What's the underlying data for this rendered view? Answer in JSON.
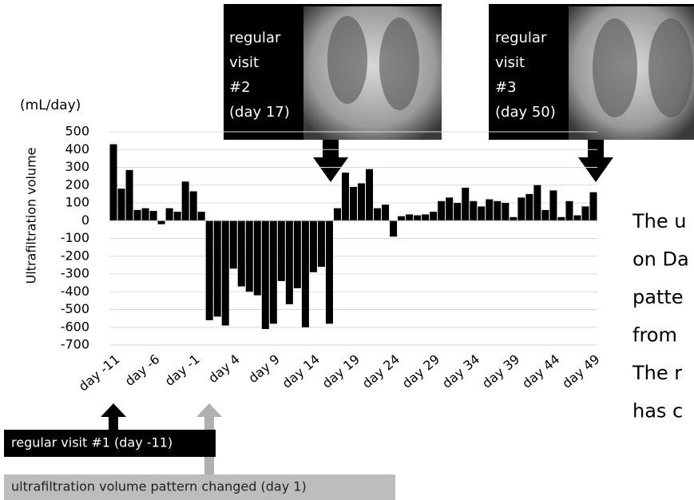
{
  "chart_data": {
    "type": "bar",
    "unit_label": "(mL/day)",
    "y_axis_label": "Ultrafiltration volume",
    "categories": [
      "day -11",
      null,
      null,
      null,
      null,
      "day -6",
      null,
      null,
      null,
      null,
      "day -1",
      null,
      null,
      null,
      null,
      "day 4",
      null,
      null,
      null,
      null,
      "day 9",
      null,
      null,
      null,
      null,
      "day 14",
      null,
      null,
      null,
      null,
      "day 19",
      null,
      null,
      null,
      null,
      "day 24",
      null,
      null,
      null,
      null,
      "day 29",
      null,
      null,
      null,
      null,
      "day 34",
      null,
      null,
      null,
      null,
      "day 39",
      null,
      null,
      null,
      null,
      "day 44",
      null,
      null,
      null,
      null,
      "day 49"
    ],
    "values": [
      430,
      180,
      285,
      60,
      70,
      55,
      -20,
      70,
      50,
      220,
      165,
      50,
      -560,
      -540,
      -590,
      -270,
      -370,
      -400,
      -420,
      -610,
      -580,
      -340,
      -470,
      -380,
      -600,
      -290,
      -260,
      -580,
      70,
      270,
      190,
      210,
      290,
      70,
      90,
      -90,
      25,
      35,
      30,
      35,
      50,
      110,
      130,
      100,
      185,
      110,
      80,
      120,
      110,
      100,
      20,
      130,
      150,
      200,
      60,
      170,
      20,
      110,
      30,
      80,
      160
    ],
    "color": "#000000",
    "ylim": [
      -700,
      500
    ],
    "yticks": [
      -700,
      -600,
      -500,
      -400,
      -300,
      -200,
      -100,
      0,
      100,
      200,
      300,
      400,
      500
    ],
    "grid": true,
    "annotations": [
      {
        "lines": [
          "regular",
          "visit",
          "#2",
          "(day 17)"
        ]
      },
      {
        "lines": [
          "regular",
          "visit",
          "#3",
          "(day 50)"
        ]
      },
      {
        "text": "regular visit #1 (day -11)"
      },
      {
        "text": "ultrafiltration volume pattern changed (day 1)"
      }
    ],
    "side_text": [
      "The u",
      "on Da",
      "patte",
      "from",
      "The r",
      "has c"
    ]
  }
}
